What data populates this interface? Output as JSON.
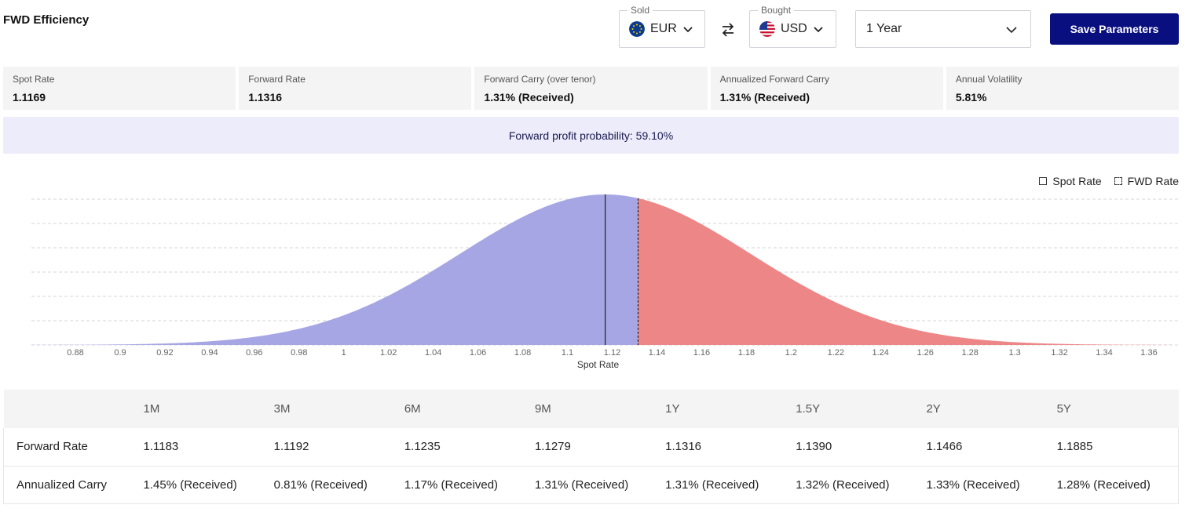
{
  "header": {
    "title": "FWD Efficiency"
  },
  "sold": {
    "legend": "Sold",
    "currency": "EUR",
    "flag_icon": "eu-flag-icon"
  },
  "bought": {
    "legend": "Bought",
    "currency": "USD",
    "flag_icon": "us-flag-icon"
  },
  "period": {
    "selected": "1 Year"
  },
  "save_button": {
    "label": "Save Parameters"
  },
  "stats": [
    {
      "label": "Spot Rate",
      "value": "1.1169"
    },
    {
      "label": "Forward Rate",
      "value": "1.1316"
    },
    {
      "label": "Forward Carry (over tenor)",
      "value": "1.31% (Received)"
    },
    {
      "label": "Annualized Forward Carry",
      "value": "1.31% (Received)"
    },
    {
      "label": "Annual Volatility",
      "value": "5.81%"
    }
  ],
  "probability_banner": "Forward profit probability: 59.10%",
  "legend": {
    "spot": "Spot Rate",
    "fwd": "FWD Rate"
  },
  "colors": {
    "accent": "#0a0f7f",
    "loss_fill": "#a7a6e4",
    "profit_fill": "#ed8787"
  },
  "chart_data": {
    "type": "area",
    "xlabel": "Spot Rate",
    "ylabel": "",
    "xlim": [
      0.86,
      1.37
    ],
    "x_ticks": [
      0.88,
      0.9,
      0.92,
      0.94,
      0.96,
      0.98,
      1,
      1.02,
      1.04,
      1.06,
      1.08,
      1.1,
      1.12,
      1.14,
      1.16,
      1.18,
      1.2,
      1.22,
      1.24,
      1.26,
      1.28,
      1.3,
      1.32,
      1.34,
      1.36
    ],
    "x_tick_labels": [
      "0.88",
      "0.9",
      "0.92",
      "0.94",
      "0.96",
      "0.98",
      "1",
      "1.02",
      "1.04",
      "1.06",
      "1.08",
      "1.1",
      "1.12",
      "1.14",
      "1.16",
      "1.18",
      "1.2",
      "1.22",
      "1.24",
      "1.26",
      "1.28",
      "1.3",
      "1.32",
      "1.34",
      "1.36"
    ],
    "distribution": {
      "kind": "normal",
      "mean": 1.1169,
      "std_dev": 0.0649
    },
    "spot_rate": 1.1169,
    "forward_rate": 1.1316,
    "grid": "horizontal dashed",
    "regions": [
      {
        "name": "below forward rate",
        "from": 0.86,
        "to": 1.1316,
        "color": "#a7a6e4"
      },
      {
        "name": "above forward rate",
        "from": 1.1316,
        "to": 1.37,
        "color": "#ed8787"
      }
    ]
  },
  "table": {
    "headers": [
      "",
      "1M",
      "3M",
      "6M",
      "9M",
      "1Y",
      "1.5Y",
      "2Y",
      "5Y"
    ],
    "rows": [
      {
        "label": "Forward Rate",
        "cells": [
          "1.1183",
          "1.1192",
          "1.1235",
          "1.1279",
          "1.1316",
          "1.1390",
          "1.1466",
          "1.1885"
        ]
      },
      {
        "label": "Annualized Carry",
        "cells": [
          "1.45% (Received)",
          "0.81% (Received)",
          "1.17% (Received)",
          "1.31% (Received)",
          "1.31% (Received)",
          "1.32% (Received)",
          "1.33% (Received)",
          "1.28% (Received)"
        ]
      }
    ]
  }
}
